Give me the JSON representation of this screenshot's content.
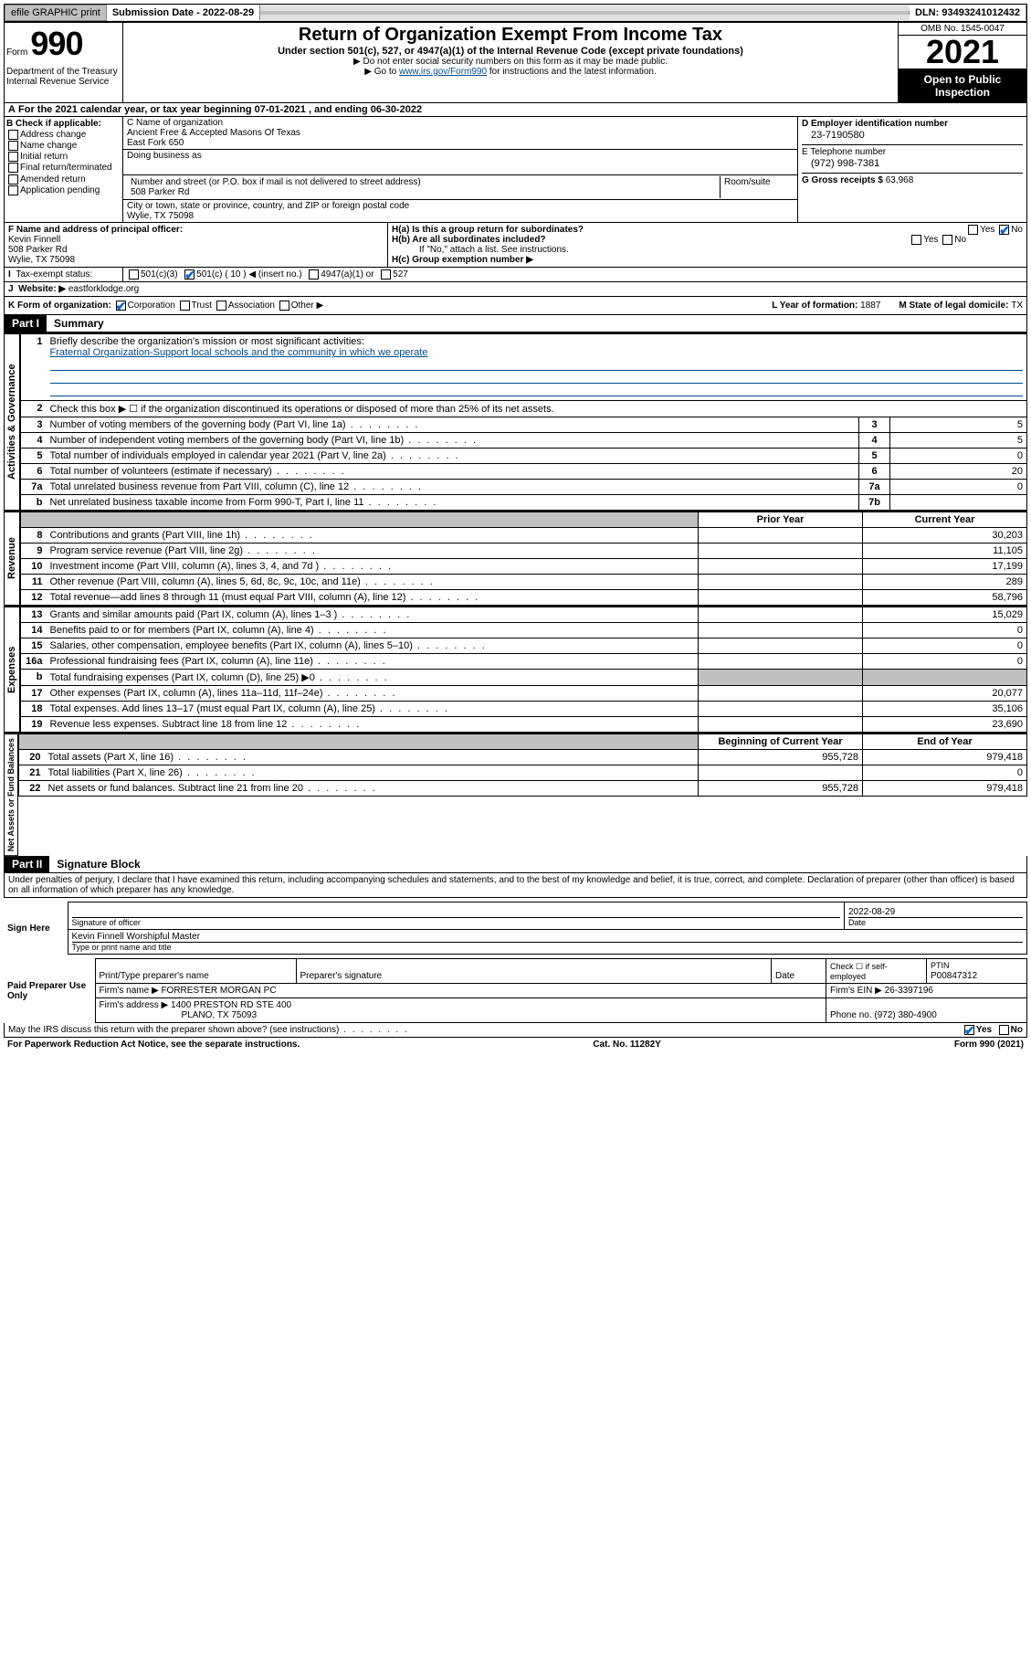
{
  "topbar": {
    "efile": "efile GRAPHIC print",
    "submission_label": "Submission Date - 2022-08-29",
    "dln": "DLN: 93493241012432"
  },
  "header": {
    "form_prefix": "Form",
    "form_number": "990",
    "title": "Return of Organization Exempt From Income Tax",
    "subtitle": "Under section 501(c), 527, or 4947(a)(1) of the Internal Revenue Code (except private foundations)",
    "note1": "▶ Do not enter social security numbers on this form as it may be made public.",
    "note2_pre": "▶ Go to ",
    "note2_link": "www.irs.gov/Form990",
    "note2_post": " for instructions and the latest information.",
    "dept": "Department of the Treasury Internal Revenue Service",
    "omb": "OMB No. 1545-0047",
    "year": "2021",
    "inspection": "Open to Public Inspection"
  },
  "period": {
    "text_pre": "For the 2021 calendar year, or tax year beginning ",
    "begin": "07-01-2021",
    "mid": " , and ending ",
    "end": "06-30-2022"
  },
  "sectionB": {
    "check_label": "B Check if applicable:",
    "checks": [
      "Address change",
      "Name change",
      "Initial return",
      "Final return/terminated",
      "Amended return",
      "Application pending"
    ],
    "c_label": "C Name of organization",
    "org_name": "Ancient Free & Accepted Masons Of Texas",
    "org_sub": "East Fork 650",
    "dba_label": "Doing business as",
    "street_label": "Number and street (or P.O. box if mail is not delivered to street address)",
    "room_label": "Room/suite",
    "street": "508 Parker Rd",
    "city_label": "City or town, state or province, country, and ZIP or foreign postal code",
    "city": "Wylie, TX  75098",
    "d_label": "D Employer identification number",
    "ein": "23-7190580",
    "e_label": "E Telephone number",
    "phone": "(972) 998-7381",
    "g_label": "G Gross receipts $ ",
    "gross": "63,968"
  },
  "sectionF": {
    "f_label": "F Name and address of principal officer:",
    "name": "Kevin Finnell",
    "addr1": "508 Parker Rd",
    "addr2": "Wylie, TX  75098",
    "ha": "H(a)  Is this a group return for subordinates?",
    "hb": "H(b)  Are all subordinates included?",
    "hb_note": "If \"No,\" attach a list. See instructions.",
    "hc": "H(c)  Group exemption number ▶",
    "yes": "Yes",
    "no": "No"
  },
  "taxExempt": {
    "label": "Tax-exempt status:",
    "opts": [
      "501(c)(3)",
      "501(c) ( 10 ) ◀ (insert no.)",
      "4947(a)(1) or",
      "527"
    ]
  },
  "website": {
    "label": "Website: ▶",
    "value": "eastforklodge.org"
  },
  "kform": {
    "label": "K Form of organization:",
    "opts": [
      "Corporation",
      "Trust",
      "Association",
      "Other ▶"
    ],
    "l_label": "L Year of formation: ",
    "l_val": "1887",
    "m_label": "M State of legal domicile: ",
    "m_val": "TX"
  },
  "partI": {
    "header": "Part I",
    "title": "Summary",
    "q1": "Briefly describe the organization's mission or most significant activities:",
    "mission": "Fraternal Organization-Support local schools and the community in which we operate",
    "q2": "Check this box ▶ ☐  if the organization discontinued its operations or disposed of more than 25% of its net assets.",
    "rows_gov": [
      {
        "n": "3",
        "label": "Number of voting members of the governing body (Part VI, line 1a)",
        "box": "3",
        "val": "5"
      },
      {
        "n": "4",
        "label": "Number of independent voting members of the governing body (Part VI, line 1b)",
        "box": "4",
        "val": "5"
      },
      {
        "n": "5",
        "label": "Total number of individuals employed in calendar year 2021 (Part V, line 2a)",
        "box": "5",
        "val": "0"
      },
      {
        "n": "6",
        "label": "Total number of volunteers (estimate if necessary)",
        "box": "6",
        "val": "20"
      },
      {
        "n": "7a",
        "label": "Total unrelated business revenue from Part VIII, column (C), line 12",
        "box": "7a",
        "val": "0"
      },
      {
        "n": "b",
        "label": "Net unrelated business taxable income from Form 990-T, Part I, line 11",
        "box": "7b",
        "val": ""
      }
    ],
    "col_prior": "Prior Year",
    "col_current": "Current Year",
    "rows_rev": [
      {
        "n": "8",
        "label": "Contributions and grants (Part VIII, line 1h)",
        "prior": "",
        "cur": "30,203"
      },
      {
        "n": "9",
        "label": "Program service revenue (Part VIII, line 2g)",
        "prior": "",
        "cur": "11,105"
      },
      {
        "n": "10",
        "label": "Investment income (Part VIII, column (A), lines 3, 4, and 7d )",
        "prior": "",
        "cur": "17,199"
      },
      {
        "n": "11",
        "label": "Other revenue (Part VIII, column (A), lines 5, 6d, 8c, 9c, 10c, and 11e)",
        "prior": "",
        "cur": "289"
      },
      {
        "n": "12",
        "label": "Total revenue—add lines 8 through 11 (must equal Part VIII, column (A), line 12)",
        "prior": "",
        "cur": "58,796"
      }
    ],
    "rows_exp": [
      {
        "n": "13",
        "label": "Grants and similar amounts paid (Part IX, column (A), lines 1–3 )",
        "prior": "",
        "cur": "15,029"
      },
      {
        "n": "14",
        "label": "Benefits paid to or for members (Part IX, column (A), line 4)",
        "prior": "",
        "cur": "0"
      },
      {
        "n": "15",
        "label": "Salaries, other compensation, employee benefits (Part IX, column (A), lines 5–10)",
        "prior": "",
        "cur": "0"
      },
      {
        "n": "16a",
        "label": "Professional fundraising fees (Part IX, column (A), line 11e)",
        "prior": "",
        "cur": "0"
      },
      {
        "n": "b",
        "label": "Total fundraising expenses (Part IX, column (D), line 25) ▶0",
        "prior": "GRAY",
        "cur": "GRAY"
      },
      {
        "n": "17",
        "label": "Other expenses (Part IX, column (A), lines 11a–11d, 11f–24e)",
        "prior": "",
        "cur": "20,077"
      },
      {
        "n": "18",
        "label": "Total expenses. Add lines 13–17 (must equal Part IX, column (A), line 25)",
        "prior": "",
        "cur": "35,106"
      },
      {
        "n": "19",
        "label": "Revenue less expenses. Subtract line 18 from line 12",
        "prior": "",
        "cur": "23,690"
      }
    ],
    "col_begin": "Beginning of Current Year",
    "col_end": "End of Year",
    "rows_net": [
      {
        "n": "20",
        "label": "Total assets (Part X, line 16)",
        "prior": "955,728",
        "cur": "979,418"
      },
      {
        "n": "21",
        "label": "Total liabilities (Part X, line 26)",
        "prior": "",
        "cur": "0"
      },
      {
        "n": "22",
        "label": "Net assets or fund balances. Subtract line 21 from line 20",
        "prior": "955,728",
        "cur": "979,418"
      }
    ],
    "side_gov": "Activities & Governance",
    "side_rev": "Revenue",
    "side_exp": "Expenses",
    "side_net": "Net Assets or Fund Balances"
  },
  "partII": {
    "header": "Part II",
    "title": "Signature Block",
    "declaration": "Under penalties of perjury, I declare that I have examined this return, including accompanying schedules and statements, and to the best of my knowledge and belief, it is true, correct, and complete. Declaration of preparer (other than officer) is based on all information of which preparer has any knowledge.",
    "sign_here": "Sign Here",
    "sig_officer": "Signature of officer",
    "date": "Date",
    "sig_date": "2022-08-29",
    "officer_name": "Kevin Finnell  Worshipful Master",
    "type_name": "Type or print name and title",
    "paid": "Paid Preparer Use Only",
    "prep_name_label": "Print/Type preparer's name",
    "prep_sig_label": "Preparer's signature",
    "date_label": "Date",
    "check_self": "Check ☐ if self-employed",
    "ptin_label": "PTIN",
    "ptin": "P00847312",
    "firm_label": "Firm's name    ▶",
    "firm": "FORRESTER MORGAN PC",
    "firm_ein_label": "Firm's EIN ▶",
    "firm_ein": "26-3397196",
    "firm_addr_label": "Firm's address ▶",
    "firm_addr1": "1400 PRESTON RD STE 400",
    "firm_addr2": "PLANO, TX  75093",
    "phone_label": "Phone no. ",
    "phone": "(972) 380-4900",
    "discuss": "May the IRS discuss this return with the preparer shown above? (see instructions)"
  },
  "footer": {
    "left": "For Paperwork Reduction Act Notice, see the separate instructions.",
    "mid": "Cat. No. 11282Y",
    "right": "Form 990 (2021)"
  }
}
